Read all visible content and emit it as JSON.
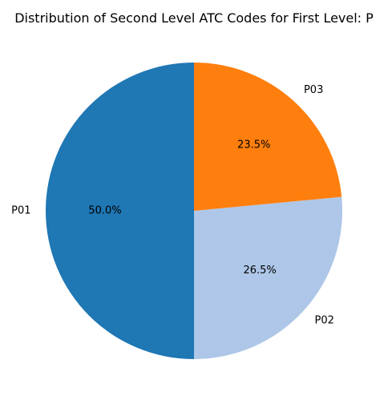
{
  "chart_data": {
    "type": "pie",
    "title": "Distribution of Second Level ATC Codes for First Level: P",
    "categories": [
      "P01",
      "P02",
      "P03"
    ],
    "values": [
      50.0,
      26.5,
      23.5
    ],
    "percent_labels": [
      "50.0%",
      "26.5%",
      "23.5%"
    ],
    "colors": [
      "#1f77b4",
      "#aec7e8",
      "#ff7f0e"
    ],
    "start_angle_deg": 90,
    "direction": "counterclockwise",
    "legend": "none"
  }
}
